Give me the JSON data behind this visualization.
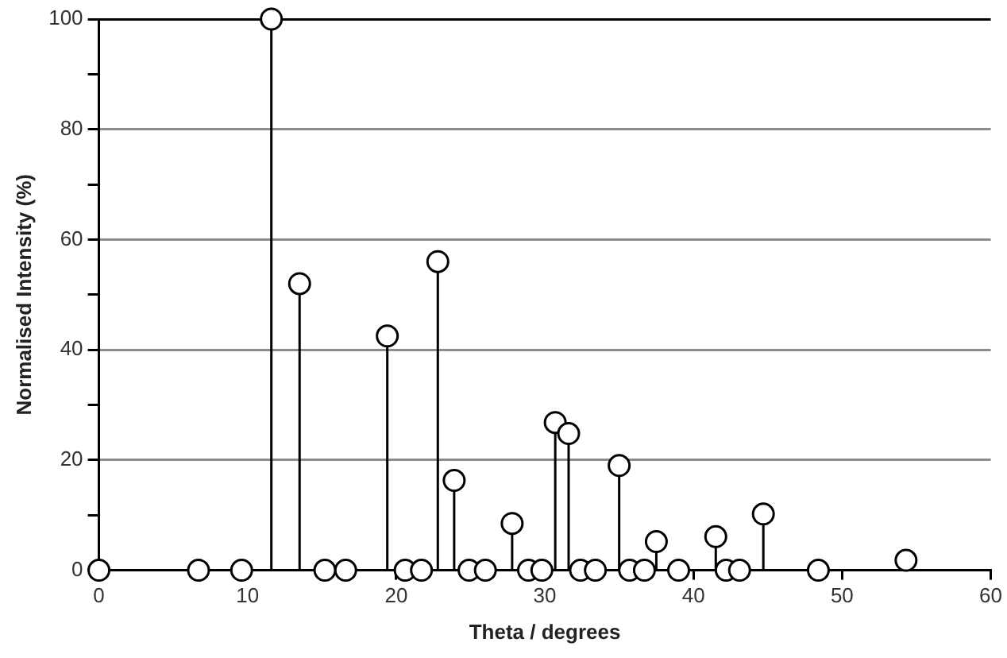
{
  "chart_data": {
    "type": "lollipop",
    "xlabel": "Theta / degrees",
    "ylabel": "Normalised Intensity (%)",
    "x": [
      0,
      6.7,
      9.6,
      11.6,
      13.5,
      15.2,
      16.6,
      19.4,
      20.6,
      21.7,
      22.8,
      23.9,
      24.9,
      26.0,
      27.8,
      28.9,
      29.8,
      30.7,
      31.6,
      32.4,
      33.4,
      35.0,
      35.7,
      36.7,
      37.5,
      39.0,
      41.5,
      42.2,
      43.1,
      44.7,
      48.4,
      54.3
    ],
    "series": [
      {
        "color": "#000000",
        "values": [
          0,
          0,
          0,
          100,
          52,
          0,
          0,
          42.5,
          0,
          0,
          56,
          16.3,
          0,
          0,
          8.5,
          0,
          0,
          26.8,
          24.8,
          0,
          0,
          19,
          0,
          0,
          5.2,
          0,
          6.1,
          0,
          0,
          10.2,
          0,
          1.8
        ]
      }
    ],
    "xlim": [
      0,
      60
    ],
    "xticks": [
      0,
      10,
      20,
      30,
      40,
      50,
      60
    ],
    "ylim": [
      0,
      100
    ],
    "yticks": [
      0,
      {
        "value": 10,
        "label": null
      },
      20,
      {
        "value": 30,
        "label": null
      },
      40,
      {
        "value": 50,
        "label": null
      },
      60,
      {
        "value": 70,
        "label": null
      },
      80,
      {
        "value": 90,
        "label": null
      },
      100
    ],
    "grid": "y",
    "marker": "circle",
    "legend": false
  }
}
